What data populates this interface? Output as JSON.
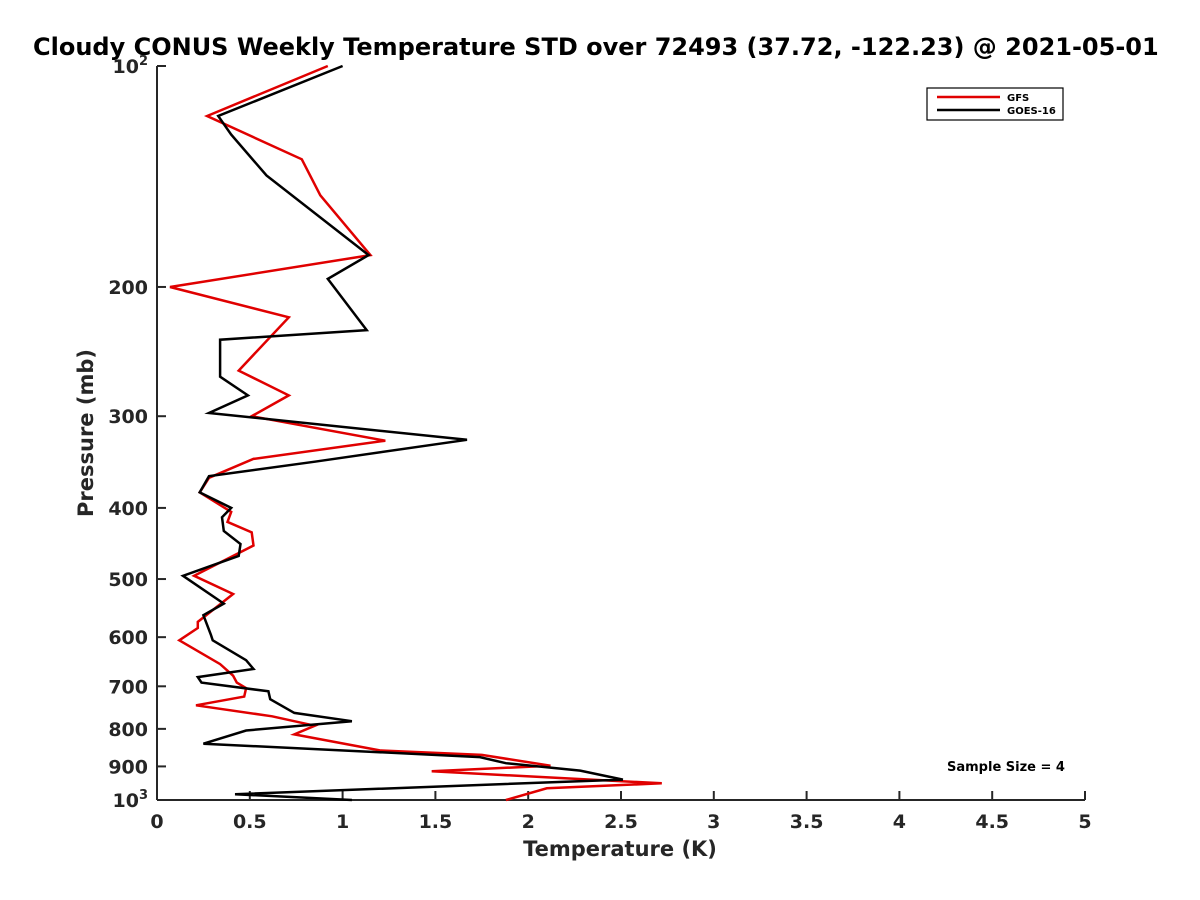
{
  "chart_data": {
    "type": "line",
    "title": "Cloudy CONUS Weekly Temperature STD over 72493 (37.72, -122.23) @ 2021-05-01",
    "xlabel": "Temperature (K)",
    "ylabel": "Pressure (mb)",
    "xlim": [
      0,
      5
    ],
    "ylim": [
      100,
      1000
    ],
    "y_scale": "log",
    "y_reversed": true,
    "grid": false,
    "legend_position": "top-right",
    "x_ticks": [
      0,
      0.5,
      1,
      1.5,
      2,
      2.5,
      3,
      3.5,
      4,
      4.5,
      5
    ],
    "x_tick_labels": [
      "0",
      "0.5",
      "1",
      "1.5",
      "2",
      "2.5",
      "3",
      "3.5",
      "4",
      "4.5",
      "5"
    ],
    "y_ticks": [
      {
        "value": 100,
        "base": "10",
        "exp": "2"
      },
      {
        "value": 200,
        "text": "200"
      },
      {
        "value": 300,
        "text": "300"
      },
      {
        "value": 400,
        "text": "400"
      },
      {
        "value": 500,
        "text": "500"
      },
      {
        "value": 600,
        "text": "600"
      },
      {
        "value": 700,
        "text": "700"
      },
      {
        "value": 800,
        "text": "800"
      },
      {
        "value": 900,
        "text": "900"
      },
      {
        "value": 1000,
        "base": "10",
        "exp": "3"
      }
    ],
    "annotation": "Sample Size = 4",
    "series": [
      {
        "name": "GFS",
        "color": "#e00000",
        "points": [
          [
            0.92,
            100
          ],
          [
            0.27,
            117
          ],
          [
            0.78,
            134
          ],
          [
            0.88,
            150
          ],
          [
            1.15,
            181
          ],
          [
            0.07,
            200
          ],
          [
            0.71,
            220
          ],
          [
            0.44,
            260
          ],
          [
            0.71,
            281
          ],
          [
            0.51,
            300
          ],
          [
            1.23,
            324
          ],
          [
            0.52,
            343
          ],
          [
            0.28,
            364
          ],
          [
            0.23,
            381
          ],
          [
            0.4,
            405
          ],
          [
            0.38,
            418
          ],
          [
            0.51,
            432
          ],
          [
            0.52,
            450
          ],
          [
            0.2,
            495
          ],
          [
            0.41,
            524
          ],
          [
            0.22,
            572
          ],
          [
            0.22,
            583
          ],
          [
            0.12,
            606
          ],
          [
            0.34,
            653
          ],
          [
            0.41,
            677
          ],
          [
            0.43,
            692
          ],
          [
            0.48,
            704
          ],
          [
            0.47,
            723
          ],
          [
            0.21,
            743
          ],
          [
            0.62,
            769
          ],
          [
            0.85,
            792
          ],
          [
            0.74,
            814
          ],
          [
            1.2,
            856
          ],
          [
            1.75,
            868
          ],
          [
            2.12,
            898
          ],
          [
            1.48,
            914
          ],
          [
            2.72,
            949
          ],
          [
            2.1,
            964
          ],
          [
            1.88,
            1000
          ]
        ]
      },
      {
        "name": "GOES-16",
        "color": "#000000",
        "points": [
          [
            1.0,
            100
          ],
          [
            0.33,
            117
          ],
          [
            0.4,
            124
          ],
          [
            0.59,
            141
          ],
          [
            1.14,
            181
          ],
          [
            0.92,
            195
          ],
          [
            1.13,
            229
          ],
          [
            0.34,
            236
          ],
          [
            0.34,
            265
          ],
          [
            0.49,
            281
          ],
          [
            0.28,
            297
          ],
          [
            1.67,
            323
          ],
          [
            0.85,
            346
          ],
          [
            0.28,
            362
          ],
          [
            0.23,
            381
          ],
          [
            0.4,
            400
          ],
          [
            0.35,
            412
          ],
          [
            0.36,
            430
          ],
          [
            0.45,
            448
          ],
          [
            0.44,
            465
          ],
          [
            0.14,
            495
          ],
          [
            0.36,
            540
          ],
          [
            0.25,
            560
          ],
          [
            0.29,
            595
          ],
          [
            0.3,
            606
          ],
          [
            0.48,
            645
          ],
          [
            0.52,
            663
          ],
          [
            0.22,
            680
          ],
          [
            0.24,
            692
          ],
          [
            0.6,
            711
          ],
          [
            0.61,
            729
          ],
          [
            0.74,
            761
          ],
          [
            1.05,
            781
          ],
          [
            0.48,
            804
          ],
          [
            0.25,
            838
          ],
          [
            1.74,
            874
          ],
          [
            1.88,
            891
          ],
          [
            2.28,
            912
          ],
          [
            2.51,
            938
          ],
          [
            0.42,
            982
          ],
          [
            1.05,
            1000
          ]
        ]
      }
    ]
  }
}
